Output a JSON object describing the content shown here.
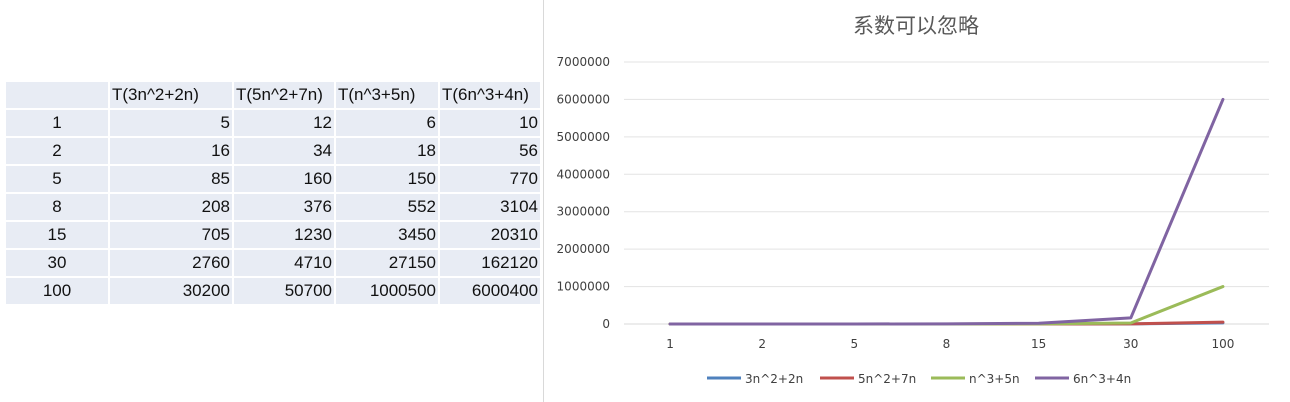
{
  "table": {
    "headers": [
      "",
      "T(3n^2+2n)",
      "T(5n^2+7n)",
      "T(n^3+5n)",
      "T(6n^3+4n)"
    ],
    "rows": [
      [
        "1",
        "5",
        "12",
        "6",
        "10"
      ],
      [
        "2",
        "16",
        "34",
        "18",
        "56"
      ],
      [
        "5",
        "85",
        "160",
        "150",
        "770"
      ],
      [
        "8",
        "208",
        "376",
        "552",
        "3104"
      ],
      [
        "15",
        "705",
        "1230",
        "3450",
        "20310"
      ],
      [
        "30",
        "2760",
        "4710",
        "27150",
        "162120"
      ],
      [
        "100",
        "30200",
        "50700",
        "1000500",
        "6000400"
      ]
    ]
  },
  "chart_data": {
    "type": "line",
    "title": "系数可以忽略",
    "categories": [
      "1",
      "2",
      "5",
      "8",
      "15",
      "30",
      "100"
    ],
    "series": [
      {
        "name": "3n^2+2n",
        "color": "#4f81bd",
        "values": [
          5,
          16,
          85,
          208,
          705,
          2760,
          30200
        ]
      },
      {
        "name": "5n^2+7n",
        "color": "#c0504d",
        "values": [
          12,
          34,
          160,
          376,
          1230,
          4710,
          50700
        ]
      },
      {
        "name": "n^3+5n",
        "color": "#9bbb59",
        "values": [
          6,
          18,
          150,
          552,
          3450,
          27150,
          1000500
        ]
      },
      {
        "name": "6n^3+4n",
        "color": "#8064a2",
        "values": [
          10,
          56,
          770,
          3104,
          20310,
          162120,
          6000400
        ]
      }
    ],
    "y_ticks": [
      "0",
      "1000000",
      "2000000",
      "3000000",
      "4000000",
      "5000000",
      "6000000",
      "7000000"
    ],
    "ylim": [
      0,
      7000000
    ],
    "grid": true,
    "legend": "bottom"
  }
}
